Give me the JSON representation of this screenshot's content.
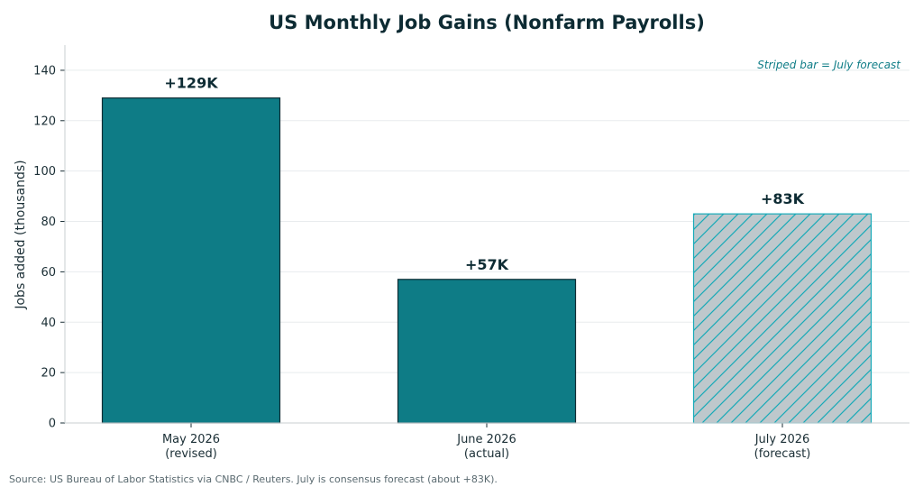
{
  "chart_data": {
    "type": "bar",
    "title": "US Monthly Job Gains (Nonfarm Payrolls)",
    "xlabel": "",
    "ylabel": "Jobs added (thousands)",
    "categories": [
      [
        "May 2026",
        "(revised)"
      ],
      [
        "June 2026",
        "(actual)"
      ],
      [
        "July 2026",
        "(forecast)"
      ]
    ],
    "values": [
      129,
      57,
      83
    ],
    "value_labels": [
      "+129K",
      "+57K",
      "+83K"
    ],
    "forecast": [
      false,
      false,
      true
    ],
    "ylim": [
      0,
      150
    ],
    "yticks": [
      0,
      20,
      40,
      60,
      80,
      100,
      120,
      140
    ],
    "grid": true,
    "annotation": "Striped bar = July forecast",
    "source": "Source: US Bureau of Labor Statistics via CNBC / Reuters. July is consensus forecast (about +83K).",
    "colors": {
      "bar": "#0e7c86",
      "bar_edge": "#0d2b33",
      "forecast_fill": "#bec8cc",
      "forecast_hatch": "#17aab8"
    }
  }
}
